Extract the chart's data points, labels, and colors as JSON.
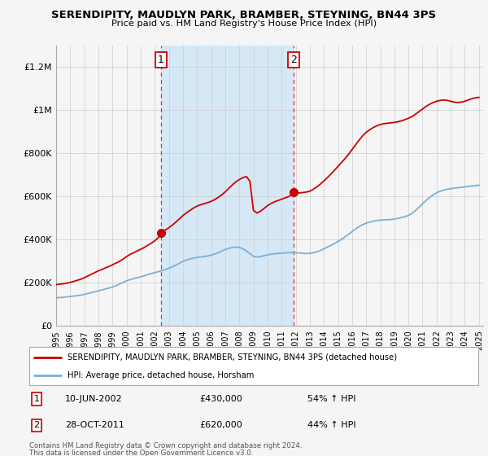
{
  "title": "SERENDIPITY, MAUDLYN PARK, BRAMBER, STEYNING, BN44 3PS",
  "subtitle": "Price paid vs. HM Land Registry's House Price Index (HPI)",
  "legend_line1": "SERENDIPITY, MAUDLYN PARK, BRAMBER, STEYNING, BN44 3PS (detached house)",
  "legend_line2": "HPI: Average price, detached house, Horsham",
  "sale1_label": "1",
  "sale1_date": "10-JUN-2002",
  "sale1_price": "£430,000",
  "sale1_hpi": "54% ↑ HPI",
  "sale2_label": "2",
  "sale2_date": "28-OCT-2011",
  "sale2_price": "£620,000",
  "sale2_hpi": "44% ↑ HPI",
  "footer1": "Contains HM Land Registry data © Crown copyright and database right 2024.",
  "footer2": "This data is licensed under the Open Government Licence v3.0.",
  "ylim": [
    0,
    1300000
  ],
  "yticks": [
    0,
    200000,
    400000,
    600000,
    800000,
    1000000,
    1200000
  ],
  "ytick_labels": [
    "£0",
    "£200K",
    "£400K",
    "£600K",
    "£800K",
    "£1M",
    "£1.2M"
  ],
  "red_color": "#cc0000",
  "blue_color": "#7ab0d4",
  "shade_color": "#d6e8f5",
  "background_color": "#f5f5f5",
  "plot_bg_color": "#f5f5f5",
  "sale1_x": 2002.45,
  "sale2_x": 2011.83,
  "xmin": 1995,
  "xmax": 2025.3,
  "years_hpi": [
    1995.0,
    1995.25,
    1995.5,
    1995.75,
    1996.0,
    1996.25,
    1996.5,
    1996.75,
    1997.0,
    1997.25,
    1997.5,
    1997.75,
    1998.0,
    1998.25,
    1998.5,
    1998.75,
    1999.0,
    1999.25,
    1999.5,
    1999.75,
    2000.0,
    2000.25,
    2000.5,
    2000.75,
    2001.0,
    2001.25,
    2001.5,
    2001.75,
    2002.0,
    2002.25,
    2002.5,
    2002.75,
    2003.0,
    2003.25,
    2003.5,
    2003.75,
    2004.0,
    2004.25,
    2004.5,
    2004.75,
    2005.0,
    2005.25,
    2005.5,
    2005.75,
    2006.0,
    2006.25,
    2006.5,
    2006.75,
    2007.0,
    2007.25,
    2007.5,
    2007.75,
    2008.0,
    2008.25,
    2008.5,
    2008.75,
    2009.0,
    2009.25,
    2009.5,
    2009.75,
    2010.0,
    2010.25,
    2010.5,
    2010.75,
    2011.0,
    2011.25,
    2011.5,
    2011.75,
    2012.0,
    2012.25,
    2012.5,
    2012.75,
    2013.0,
    2013.25,
    2013.5,
    2013.75,
    2014.0,
    2014.25,
    2014.5,
    2014.75,
    2015.0,
    2015.25,
    2015.5,
    2015.75,
    2016.0,
    2016.25,
    2016.5,
    2016.75,
    2017.0,
    2017.25,
    2017.5,
    2017.75,
    2018.0,
    2018.25,
    2018.5,
    2018.75,
    2019.0,
    2019.25,
    2019.5,
    2019.75,
    2020.0,
    2020.25,
    2020.5,
    2020.75,
    2021.0,
    2021.25,
    2021.5,
    2021.75,
    2022.0,
    2022.25,
    2022.5,
    2022.75,
    2023.0,
    2023.25,
    2023.5,
    2023.75,
    2024.0,
    2024.25,
    2024.5,
    2024.75,
    2025.0
  ],
  "hpi_vals": [
    130000,
    132000,
    133000,
    135000,
    137000,
    139000,
    141000,
    143000,
    147000,
    151000,
    155000,
    159000,
    163000,
    167000,
    172000,
    176000,
    181000,
    187000,
    195000,
    202000,
    210000,
    215000,
    220000,
    224000,
    228000,
    233000,
    238000,
    243000,
    248000,
    252000,
    257000,
    262000,
    268000,
    275000,
    283000,
    291000,
    300000,
    306000,
    311000,
    315000,
    318000,
    320000,
    322000,
    325000,
    329000,
    334000,
    340000,
    347000,
    355000,
    360000,
    364000,
    366000,
    365000,
    358000,
    348000,
    336000,
    323000,
    320000,
    322000,
    326000,
    330000,
    333000,
    335000,
    337000,
    338000,
    339000,
    340000,
    341000,
    340000,
    339000,
    337000,
    336000,
    337000,
    340000,
    344000,
    350000,
    358000,
    366000,
    374000,
    382000,
    392000,
    402000,
    413000,
    425000,
    438000,
    450000,
    461000,
    470000,
    477000,
    482000,
    486000,
    489000,
    491000,
    492000,
    493000,
    494000,
    496000,
    499000,
    503000,
    507000,
    513000,
    522000,
    535000,
    550000,
    567000,
    582000,
    596000,
    608000,
    618000,
    625000,
    630000,
    634000,
    637000,
    639000,
    641000,
    643000,
    645000,
    647000,
    649000,
    651000,
    653000
  ],
  "red_vals": [
    192000,
    194000,
    196000,
    199000,
    202000,
    207000,
    212000,
    217000,
    224000,
    232000,
    240000,
    248000,
    256000,
    262000,
    270000,
    276000,
    284000,
    292000,
    300000,
    310000,
    322000,
    332000,
    340000,
    348000,
    356000,
    364000,
    374000,
    384000,
    395000,
    410000,
    432000,
    445000,
    456000,
    468000,
    482000,
    497000,
    512000,
    525000,
    536000,
    547000,
    556000,
    562000,
    567000,
    572000,
    578000,
    586000,
    596000,
    608000,
    622000,
    638000,
    654000,
    668000,
    679000,
    688000,
    693000,
    672000,
    536000,
    524000,
    532000,
    545000,
    558000,
    568000,
    576000,
    582000,
    588000,
    594000,
    600000,
    610000,
    614000,
    617000,
    619000,
    621000,
    625000,
    634000,
    645000,
    658000,
    673000,
    688000,
    705000,
    722000,
    740000,
    758000,
    776000,
    796000,
    818000,
    840000,
    862000,
    882000,
    898000,
    910000,
    920000,
    928000,
    934000,
    938000,
    940000,
    942000,
    944000,
    947000,
    951000,
    957000,
    963000,
    971000,
    982000,
    994000,
    1006000,
    1018000,
    1028000,
    1036000,
    1042000,
    1046000,
    1048000,
    1046000,
    1042000,
    1038000,
    1036000,
    1038000,
    1042000,
    1048000,
    1054000,
    1058000,
    1060000
  ]
}
